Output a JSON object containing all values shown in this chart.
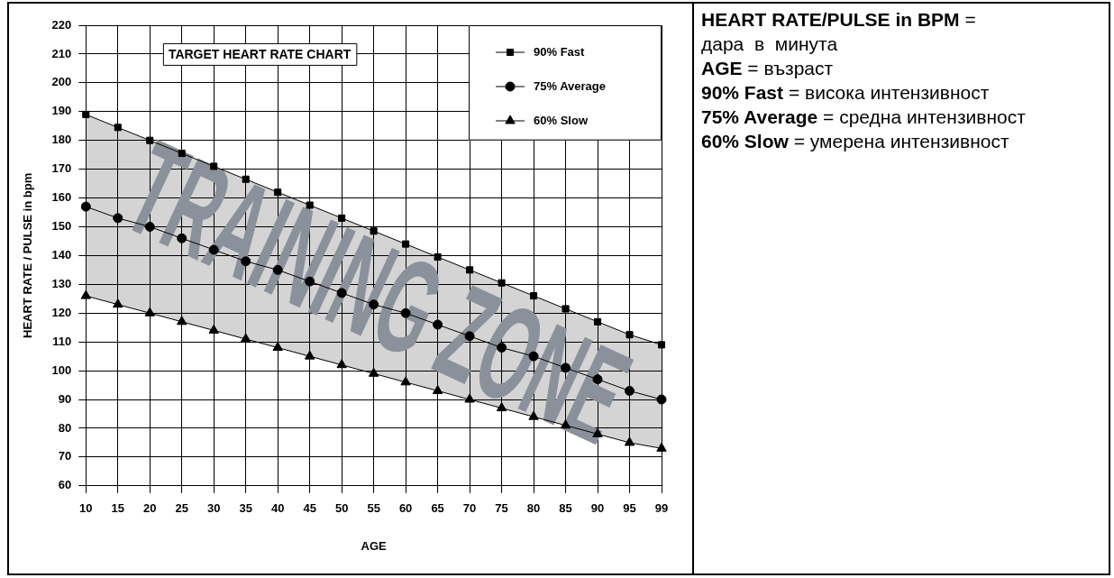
{
  "chart_data": {
    "type": "line",
    "title": "TARGET HEART RATE CHART",
    "xlabel": "AGE",
    "ylabel": "HEART RATE / PULSE in bpm",
    "categories": [
      "10",
      "15",
      "20",
      "25",
      "30",
      "35",
      "40",
      "45",
      "50",
      "55",
      "60",
      "65",
      "70",
      "75",
      "80",
      "85",
      "90",
      "95",
      "99"
    ],
    "series": [
      {
        "name": "90% Fast",
        "color": "#000000",
        "marker": "square",
        "values": [
          189,
          184.5,
          180,
          175.5,
          171,
          166.5,
          162,
          157.5,
          153,
          148.5,
          144,
          139.5,
          135,
          130.5,
          126,
          121.5,
          117,
          112.5,
          109
        ]
      },
      {
        "name": "75% Average",
        "color": "#000000",
        "marker": "circle",
        "values": [
          157,
          153,
          150,
          146,
          142,
          138,
          135,
          131,
          127,
          123,
          120,
          116,
          112,
          108,
          105,
          101,
          97,
          93,
          90
        ]
      },
      {
        "name": "60% Slow",
        "color": "#000000",
        "marker": "triangle",
        "values": [
          126,
          123,
          120,
          117,
          114,
          111,
          108,
          105,
          102,
          99,
          96,
          93,
          90,
          87,
          84,
          81,
          78,
          75,
          73
        ]
      }
    ],
    "ylim": [
      60,
      220
    ],
    "yticks": [
      60,
      70,
      80,
      90,
      100,
      110,
      120,
      130,
      140,
      150,
      160,
      170,
      180,
      190,
      200,
      210,
      220
    ],
    "grid": true,
    "legend": "top right",
    "line_style": "solid",
    "annotations": [
      "TRAINING ZONE",
      "HEART RATE/PULSE in BPM =",
      "дара  в  минута",
      "AGE = възраст",
      "90% Fast = висока интензивност",
      "75% Average = средна интензивност",
      "60% Slow = умерена интензивност"
    ]
  }
}
